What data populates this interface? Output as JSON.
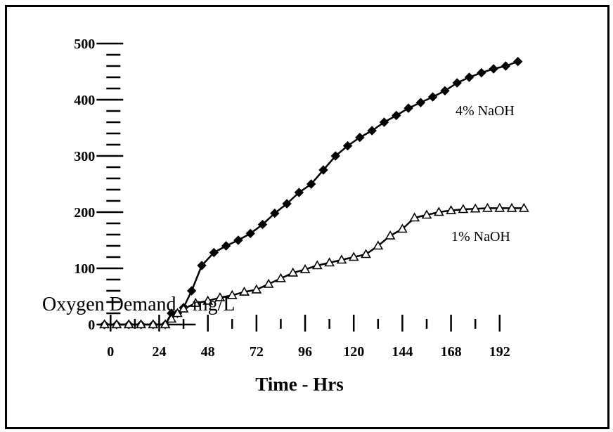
{
  "chart_data": {
    "type": "line",
    "xlabel": "Time - Hrs",
    "ylabel": "Oxygen Demand - mg/L",
    "xlim": [
      -6,
      207
    ],
    "ylim": [
      0,
      500
    ],
    "x_ticks": [
      0,
      24,
      48,
      72,
      96,
      120,
      144,
      168,
      192
    ],
    "y_ticks": [
      0,
      100,
      200,
      300,
      400,
      500
    ],
    "grid": false,
    "series": [
      {
        "name": "4% NaOH",
        "marker": "filled-diamond",
        "color": "#000000",
        "x": [
          -3,
          3,
          9,
          15,
          21,
          27,
          30,
          33,
          36,
          40,
          45,
          51,
          57,
          63,
          69,
          75,
          81,
          87,
          93,
          99,
          105,
          111,
          117,
          123,
          129,
          135,
          141,
          147,
          153,
          159,
          165,
          171,
          177,
          183,
          189,
          195,
          201
        ],
        "values": [
          0,
          0,
          0,
          0,
          0,
          0,
          20,
          20,
          30,
          60,
          105,
          128,
          140,
          150,
          162,
          178,
          198,
          215,
          235,
          250,
          275,
          300,
          318,
          333,
          345,
          360,
          372,
          385,
          395,
          405,
          416,
          430,
          440,
          448,
          455,
          460,
          468
        ]
      },
      {
        "name": "1% NaOH",
        "marker": "open-triangle",
        "color": "#000000",
        "x": [
          -3,
          3,
          9,
          15,
          21,
          27,
          30,
          33,
          36,
          42,
          48,
          54,
          60,
          66,
          72,
          78,
          84,
          90,
          96,
          102,
          108,
          114,
          120,
          126,
          132,
          138,
          144,
          150,
          156,
          162,
          168,
          174,
          180,
          186,
          192,
          198,
          204
        ],
        "values": [
          0,
          0,
          0,
          0,
          0,
          0,
          10,
          20,
          28,
          38,
          42,
          48,
          52,
          58,
          62,
          72,
          82,
          92,
          98,
          105,
          110,
          115,
          120,
          125,
          140,
          158,
          170,
          190,
          195,
          200,
          203,
          205,
          206,
          207,
          207,
          207,
          207
        ]
      }
    ]
  }
}
